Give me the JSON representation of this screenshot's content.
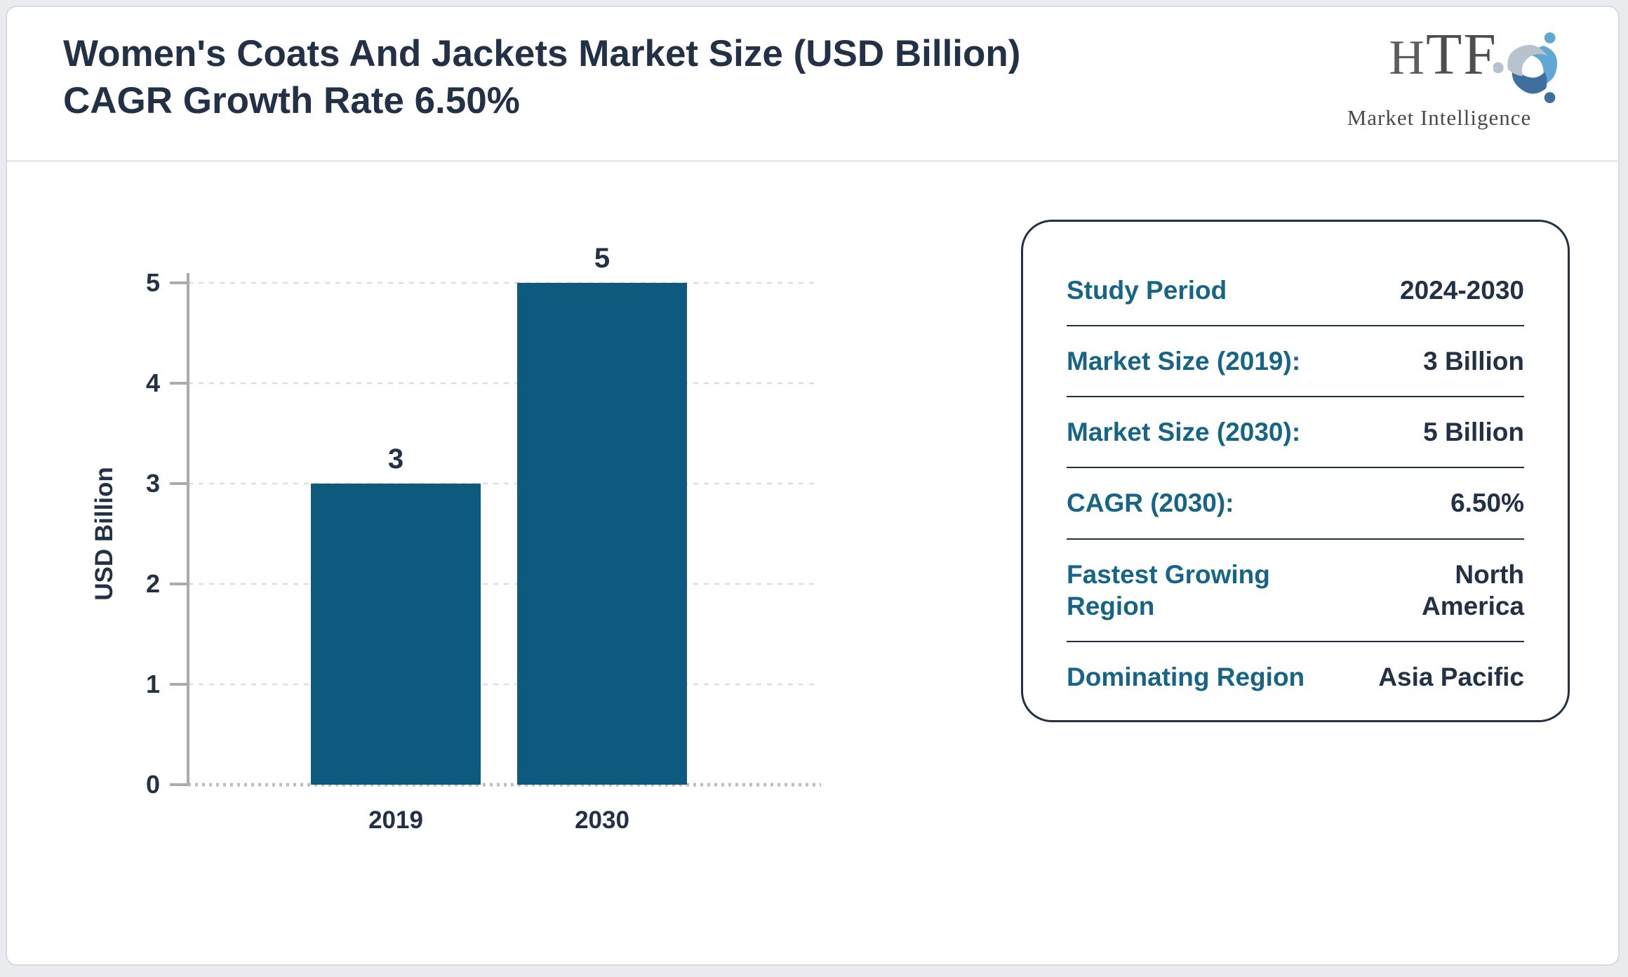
{
  "header": {
    "title": "Women's Coats And Jackets Market Size (USD Billion) CAGR Growth Rate 6.50%"
  },
  "logo": {
    "text": "HTF",
    "subtext": "Market Intelligence",
    "mark_colors": [
      "#5fa8d3",
      "#3e6f9f",
      "#b7c2cc"
    ]
  },
  "chart_data": {
    "type": "bar",
    "title": "",
    "xlabel": "",
    "ylabel": "USD Billion",
    "categories": [
      "2019",
      "2030"
    ],
    "values": [
      3,
      5
    ],
    "data_labels": [
      "3",
      "5"
    ],
    "ylim": [
      0,
      5
    ],
    "yticks": [
      0,
      1,
      2,
      3,
      4,
      5
    ],
    "grid": true,
    "legend": false,
    "bar_color": "#0e5a7e",
    "axis_color": "#a9abaf",
    "grid_color": "#dcdee1",
    "text_color": "#223146"
  },
  "panel": {
    "rows": [
      {
        "label": "Study Period",
        "value": "2024-2030"
      },
      {
        "label": "Market Size (2019):",
        "value": "3 Billion"
      },
      {
        "label": "Market Size (2030):",
        "value": "5 Billion"
      },
      {
        "label": "CAGR (2030):",
        "value": "6.50%"
      },
      {
        "label": "Fastest Growing Region",
        "value": "North America"
      },
      {
        "label": "Dominating Region",
        "value": "Asia Pacific"
      }
    ]
  },
  "colors": {
    "accent_teal": "#176586",
    "navy": "#223146",
    "bar": "#0e5a7e",
    "card_bg": "#ffffff",
    "page_bg": "#e9ebee"
  }
}
